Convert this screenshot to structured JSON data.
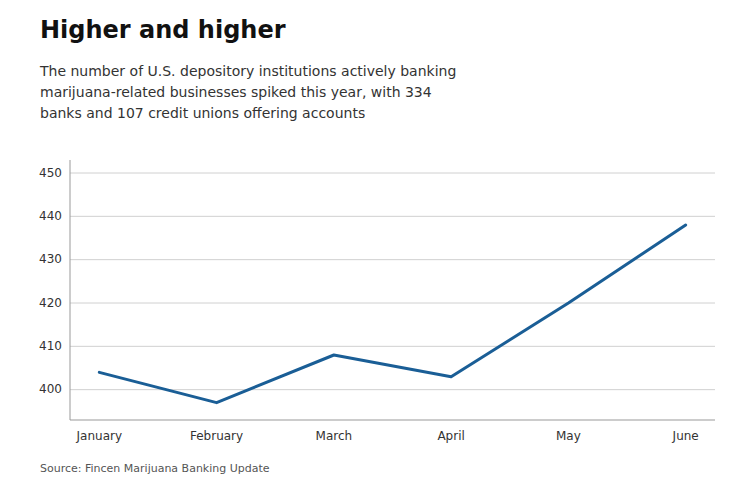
{
  "chart_data": {
    "type": "line",
    "title": "Higher and higher",
    "subtitle": "The number of U.S. depository institutions actively banking\nmarijuana-related businesses spiked this year, with 334\nbanks and 107 credit unions offering accounts",
    "source": "Source: Fincen Marijuana Banking Update",
    "categories": [
      "January",
      "February",
      "March",
      "April",
      "May",
      "June"
    ],
    "values": [
      404,
      397,
      408,
      403,
      420,
      438
    ],
    "color": "#1a5e96",
    "ylim": [
      393,
      453
    ],
    "yticks": [
      400,
      410,
      420,
      430,
      440,
      450
    ],
    "grid": true
  }
}
